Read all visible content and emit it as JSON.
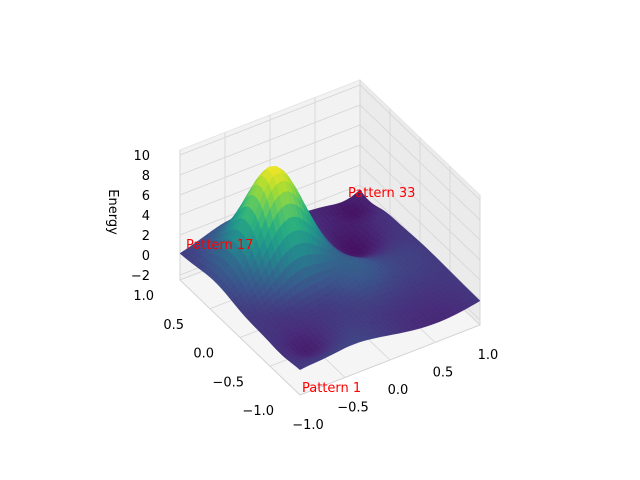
{
  "chart_data": {
    "type": "surface3d",
    "zlabel": "Energy",
    "xlabel": "",
    "ylabel": "",
    "x_ticks": [
      "−1.0",
      "−0.5",
      "0.0",
      "0.5",
      "1.0"
    ],
    "y_ticks": [
      "−1.0",
      "−0.5",
      "0.0",
      "0.5",
      "1.0"
    ],
    "z_ticks": [
      "−2",
      "0",
      "2",
      "4",
      "6",
      "8",
      "10"
    ],
    "xlim": [
      -1.0,
      1.0
    ],
    "ylim": [
      -1.0,
      1.0
    ],
    "zlim": [
      -2.5,
      10.5
    ],
    "grid": true,
    "colormap": "viridis",
    "annotations": [
      {
        "text": "Pattern 1",
        "x": -1.0,
        "y": -1.0,
        "z": 0.0
      },
      {
        "text": "Pattern 17",
        "x": -1.0,
        "y": 1.0,
        "z": 0.0
      },
      {
        "text": "Pattern 33",
        "x": 1.0,
        "y": 1.0,
        "z": 0.0
      }
    ],
    "peak": {
      "x": -0.35,
      "y": 0.4,
      "z": 10.0
    },
    "trough": {
      "x": 0.5,
      "y": 0.35,
      "z": -1.8
    }
  }
}
